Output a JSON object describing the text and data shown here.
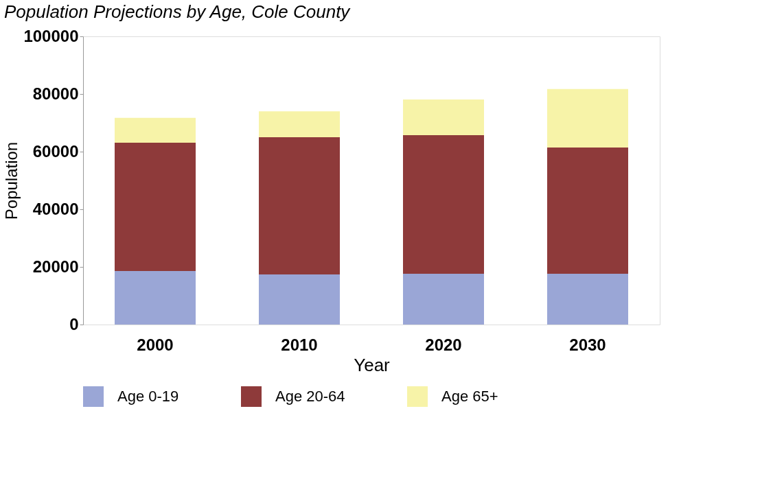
{
  "chart_data": {
    "type": "bar",
    "stacked": true,
    "title": "Population Projections by Age, Cole County",
    "xlabel": "Year",
    "ylabel": "Population",
    "categories": [
      "2000",
      "2010",
      "2020",
      "2030"
    ],
    "series": [
      {
        "name": "Age 0-19",
        "color": "#9aa6d6",
        "values": [
          18600,
          17400,
          17600,
          17600
        ]
      },
      {
        "name": "Age 20-64",
        "color": "#8e3a3a",
        "values": [
          44500,
          47600,
          48100,
          43800
        ]
      },
      {
        "name": "Age 65+",
        "color": "#f7f3a8",
        "values": [
          8600,
          9000,
          12400,
          20300
        ]
      }
    ],
    "ylim": [
      0,
      100000
    ],
    "yticks": [
      0,
      20000,
      40000,
      60000,
      80000,
      100000
    ],
    "grid": false,
    "legend": "bottom"
  }
}
